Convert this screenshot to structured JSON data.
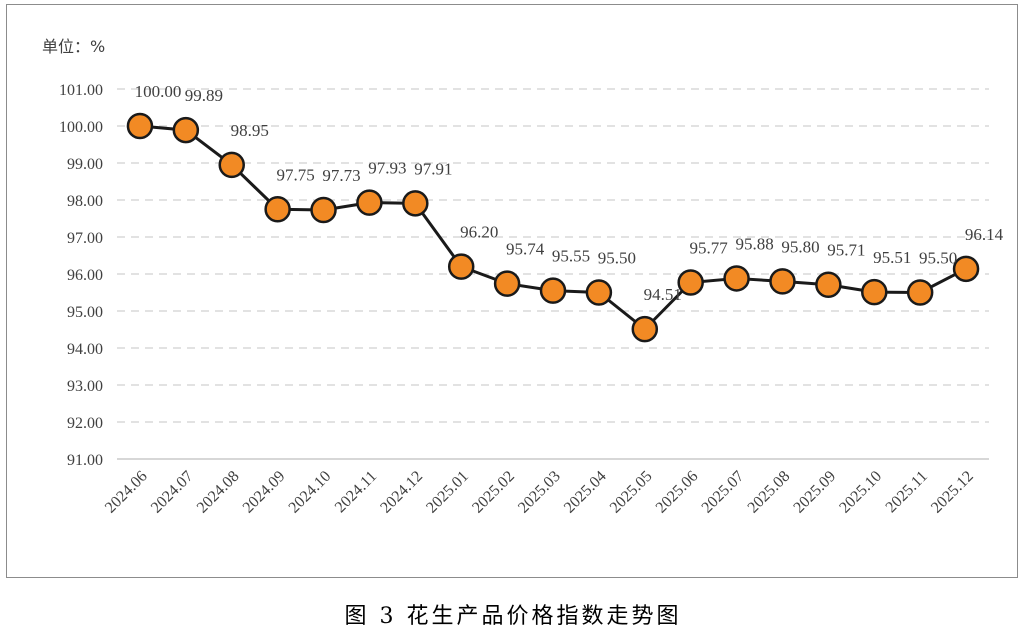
{
  "chart_data": {
    "type": "line",
    "unit_label": "单位：%",
    "caption": "图 3  花生产品价格指数走势图",
    "categories": [
      "2024.06",
      "2024.07",
      "2024.08",
      "2024.09",
      "2024.10",
      "2024.11",
      "2024.12",
      "2025.01",
      "2025.02",
      "2025.03",
      "2025.04",
      "2025.05",
      "2025.06",
      "2025.07",
      "2025.08",
      "2025.09",
      "2025.10",
      "2025.11",
      "2025.12"
    ],
    "values": [
      100.0,
      99.89,
      98.95,
      97.75,
      97.73,
      97.93,
      97.91,
      96.2,
      95.74,
      95.55,
      95.5,
      94.51,
      95.77,
      95.88,
      95.8,
      95.71,
      95.51,
      95.5,
      96.14
    ],
    "value_labels": [
      "100.00",
      "99.89",
      "98.95",
      "97.75",
      "97.73",
      "97.93",
      "97.91",
      "96.20",
      "95.74",
      "95.55",
      "95.50",
      "94.51",
      "95.77",
      "95.88",
      "95.80",
      "95.71",
      "95.51",
      "95.50",
      "96.14"
    ],
    "y_ticks": [
      "101.00",
      "100.00",
      "99.00",
      "98.00",
      "97.00",
      "96.00",
      "95.00",
      "94.00",
      "93.00",
      "92.00",
      "91.00"
    ],
    "ylim": [
      91,
      101
    ],
    "grid": true,
    "legend": "none",
    "colors": {
      "marker_fill": "#f28a24",
      "marker_stroke": "#1a1a1a",
      "line": "#1a1a1a",
      "grid": "#d0d0d0",
      "axis": "#bfbfbf"
    }
  }
}
